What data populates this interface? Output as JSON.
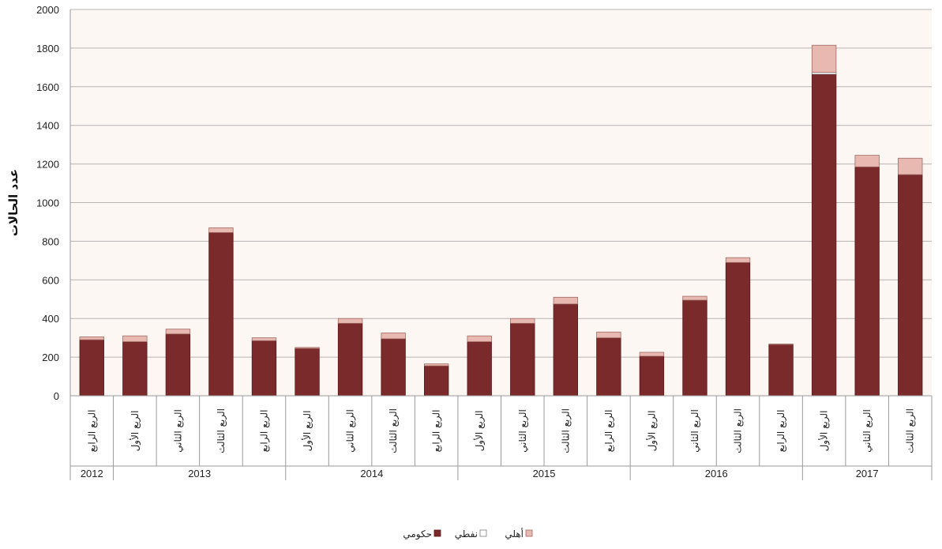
{
  "chart_data": {
    "type": "bar",
    "stacked": true,
    "title": "",
    "xlabel": "",
    "ylabel": "عدد الحالات",
    "ylim": [
      0,
      2000
    ],
    "yticks": [
      0,
      200,
      400,
      600,
      800,
      1000,
      1200,
      1400,
      1600,
      1800,
      2000
    ],
    "grid": true,
    "legend_position": "bottom",
    "colors": {
      "plot_background": "#fdf7f4",
      "grid": "#b8b4b2",
      "axis": "#9a9a9a",
      "series": [
        "#7b2a2b",
        "#ffffff",
        "#e8b9b1"
      ],
      "series_stroke": [
        "#5a1a1c",
        "#7f7f7f",
        "#a06a64"
      ]
    },
    "groups": [
      {
        "year": "2012",
        "quarters": [
          "الربع الرابع"
        ]
      },
      {
        "year": "2013",
        "quarters": [
          "الربع الأول",
          "الربع الثاني",
          "الربع الثالث",
          "الربع الرابع"
        ]
      },
      {
        "year": "2014",
        "quarters": [
          "الربع الأول",
          "الربع الثاني",
          "الربع الثالث",
          "الربع الرابع"
        ]
      },
      {
        "year": "2015",
        "quarters": [
          "الربع الأول",
          "الربع الثاني",
          "الربع الثالث",
          "الربع الرابع"
        ]
      },
      {
        "year": "2016",
        "quarters": [
          "الربع الأول",
          "الربع الثاني",
          "الربع الثالث",
          "الربع الرابع"
        ]
      },
      {
        "year": "2017",
        "quarters": [
          "الربع الأول",
          "الربع الثاني",
          "الربع الثالث"
        ]
      }
    ],
    "series": [
      {
        "name": "حكومي",
        "values": [
          290,
          280,
          320,
          845,
          285,
          245,
          375,
          295,
          155,
          280,
          375,
          475,
          300,
          205,
          495,
          690,
          265,
          1665,
          1185,
          1145
        ]
      },
      {
        "name": "نفطي",
        "values": [
          0,
          0,
          0,
          0,
          0,
          0,
          0,
          0,
          0,
          0,
          0,
          0,
          0,
          0,
          0,
          0,
          0,
          10,
          0,
          0
        ]
      },
      {
        "name": "أهلي",
        "values": [
          15,
          30,
          25,
          25,
          15,
          5,
          25,
          30,
          10,
          30,
          25,
          35,
          30,
          20,
          20,
          25,
          3,
          140,
          60,
          85
        ]
      }
    ]
  }
}
